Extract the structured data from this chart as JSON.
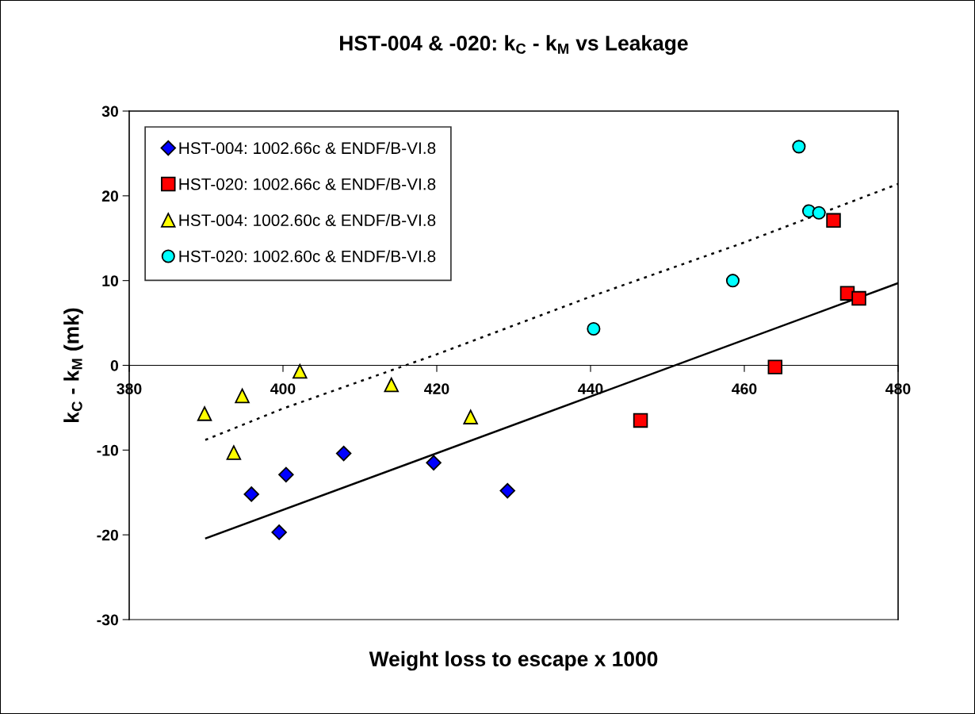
{
  "chart_data": {
    "type": "scatter",
    "title": "HST-004 & -020: k$_{C}$ - k$_{M}$ vs Leakage",
    "xlabel": "Weight loss to escape x 1000",
    "ylabel": "k$_{C}$ - k$_{M}$ (mk)",
    "xlim": [
      380,
      480
    ],
    "xticks": [
      380,
      400,
      420,
      440,
      460,
      480
    ],
    "ylim": [
      -30,
      30
    ],
    "yticks": [
      -30,
      -20,
      -10,
      0,
      10,
      20,
      30
    ],
    "grid": false,
    "legend": "top left",
    "series": [
      {
        "name": "HST-004: 1002.66c & ENDF/B-VI.8",
        "color": "#0000ff",
        "marker": "diamond",
        "x": [
          395.9,
          399.5,
          400.4,
          407.9,
          419.6,
          429.2
        ],
        "values": [
          -15.2,
          -19.7,
          -12.9,
          -10.4,
          -11.5,
          -14.8
        ]
      },
      {
        "name": "HST-020: 1002.66c & ENDF/B-VI.8",
        "color": "#ff0000",
        "marker": "square",
        "x": [
          446.5,
          464.0,
          471.6,
          473.4,
          474.9
        ],
        "values": [
          -6.5,
          -0.2,
          17.1,
          8.5,
          7.9
        ]
      },
      {
        "name": "HST-004: 1002.60c & ENDF/B-VI.8",
        "color": "#ffff00",
        "marker": "triangle",
        "x": [
          389.8,
          394.7,
          393.6,
          402.2,
          414.1,
          424.4
        ],
        "values": [
          -5.7,
          -3.6,
          -10.3,
          -0.7,
          -2.3,
          -6.1
        ]
      },
      {
        "name": "HST-020: 1002.60c & ENDF/B-VI.8",
        "color": "#00ffff",
        "marker": "circle",
        "x": [
          440.4,
          458.5,
          467.1,
          468.4,
          469.7
        ],
        "values": [
          4.3,
          10.0,
          25.8,
          18.2,
          18.0
        ]
      },
      {
        "type": "line",
        "color": "#000000",
        "line_style": "solid",
        "x": [
          390.0,
          480.0
        ],
        "values": [
          -20.4,
          9.7
        ]
      },
      {
        "type": "line",
        "color": "#000000",
        "line_style": "dotted",
        "x": [
          389.9,
          400,
          420,
          440,
          460,
          480
        ],
        "values": [
          -8.8,
          -5.1,
          1.3,
          8.1,
          14.5,
          21.4
        ]
      }
    ]
  }
}
